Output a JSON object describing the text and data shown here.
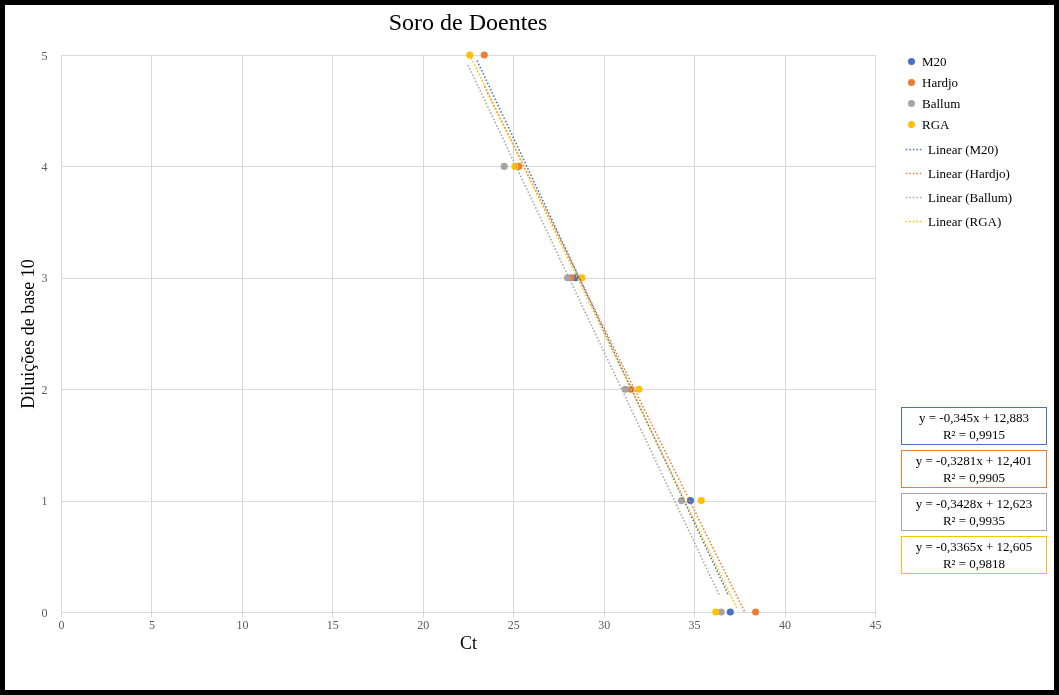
{
  "chart_data": {
    "type": "scatter",
    "title": "Soro de Doentes",
    "xlabel": "Ct",
    "ylabel": "Diluições de base 10",
    "xlim": [
      0,
      45
    ],
    "xticks": [
      0,
      5,
      10,
      15,
      20,
      25,
      30,
      35,
      40,
      45
    ],
    "ylim": [
      0,
      5
    ],
    "yticks": [
      0,
      1,
      2,
      3,
      4,
      5
    ],
    "grid": true,
    "legend": "right",
    "series": [
      {
        "name": "M20",
        "type": "scatter",
        "marker": "circle",
        "color": "#4472c4",
        "x": [
          null,
          null,
          28.45,
          null,
          34.8,
          37.0
        ],
        "values": [
          null,
          null,
          3,
          null,
          1,
          0
        ]
      },
      {
        "name": "Hardjo",
        "type": "scatter",
        "marker": "circle",
        "color": "#ed7d31",
        "x": [
          23.4,
          25.3,
          28.2,
          31.5,
          null,
          38.4
        ],
        "values": [
          5,
          4,
          3,
          2,
          null,
          0
        ]
      },
      {
        "name": "Ballum",
        "type": "scatter",
        "marker": "circle",
        "color": "#a5a5a5",
        "x": [
          null,
          24.5,
          28.0,
          31.2,
          34.3,
          36.5
        ],
        "values": [
          null,
          4,
          3,
          2,
          1,
          0
        ]
      },
      {
        "name": "RGA",
        "type": "scatter",
        "marker": "circle",
        "color": "#ffc000",
        "x": [
          22.6,
          25.1,
          28.8,
          31.95,
          35.4,
          36.2
        ],
        "values": [
          5,
          4,
          3,
          2,
          1,
          0
        ]
      },
      {
        "name": "Linear (M20)",
        "type": "line",
        "marker": "none",
        "line_style": "dotted",
        "color": "#4472c4",
        "x": [
          23.0,
          36.9
        ],
        "values": [
          4.95,
          0.15
        ]
      },
      {
        "name": "Linear (Hardjo)",
        "type": "line",
        "marker": "none",
        "line_style": "dotted",
        "color": "#ed7d31",
        "x": [
          23.4,
          37.8
        ],
        "values": [
          4.72,
          0.0
        ]
      },
      {
        "name": "Linear (Ballum)",
        "type": "line",
        "marker": "none",
        "line_style": "dotted",
        "color": "#a5a5a5",
        "x": [
          22.5,
          36.4
        ],
        "values": [
          4.91,
          0.15
        ]
      },
      {
        "name": "Linear (RGA)",
        "type": "line",
        "marker": "none",
        "line_style": "dotted",
        "color": "#ffc000",
        "x": [
          22.6,
          37.4
        ],
        "values": [
          5.0,
          0.02
        ]
      }
    ],
    "annotations": [
      "y = -0,345x + 12,883\nR² = 0,9915",
      "y = -0,3281x + 12,401\nR² = 0,9905",
      "y = -0,3428x + 12,623\nR² = 0,9935",
      "y = -0,3365x + 12,605\nR² = 0,9818"
    ]
  }
}
